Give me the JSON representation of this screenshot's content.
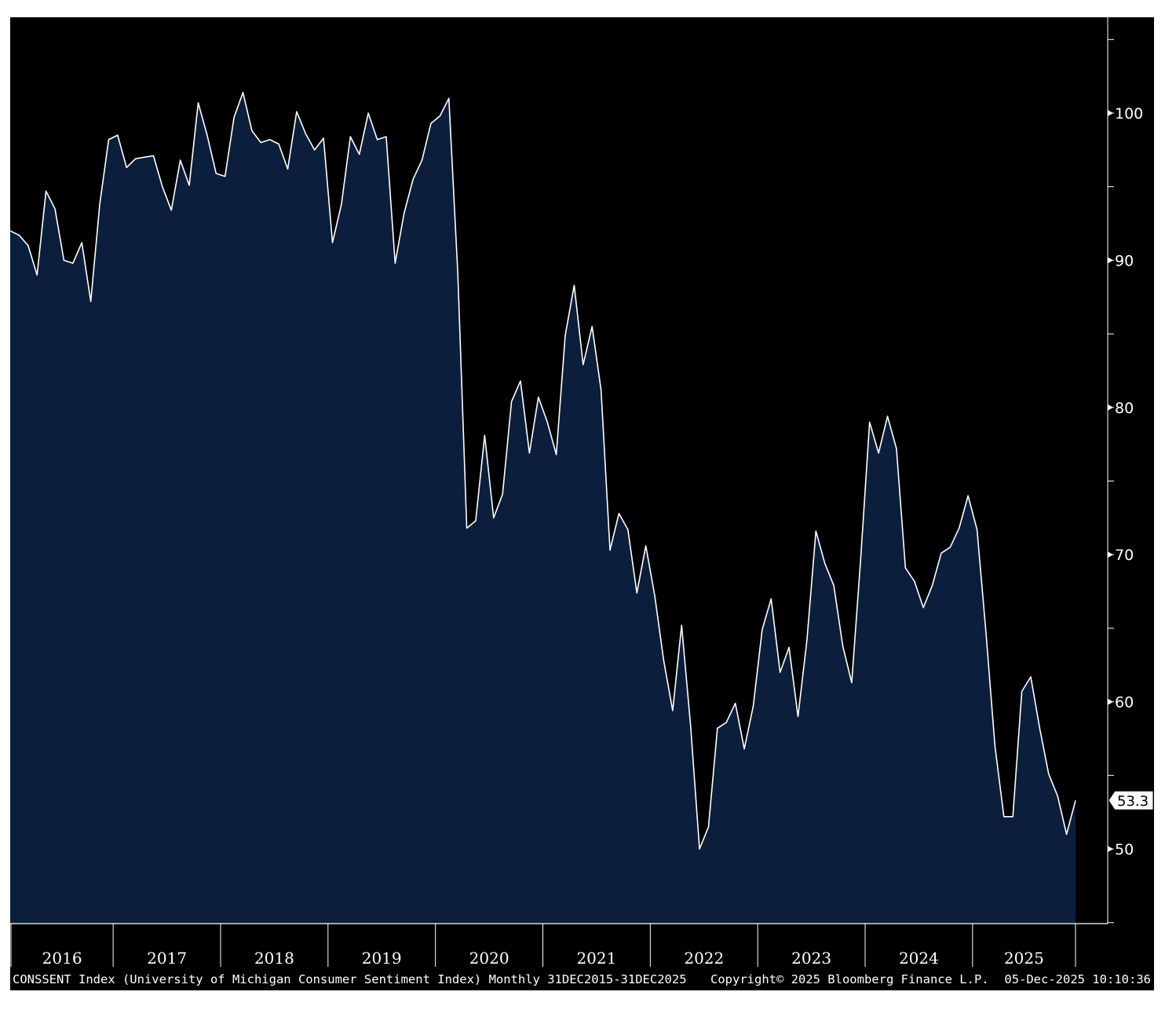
{
  "colors": {
    "background": "#000000",
    "area_fill": "#0b1f3c",
    "line": "#ffffff",
    "axis": "#ffffff",
    "marker_bg": "#ffffff"
  },
  "footer": {
    "description": "CONSSENT Index (University of Michigan Consumer Sentiment Index) Monthly 31DEC2015-31DEC2025",
    "copyright": "Copyright© 2025 Bloomberg Finance L.P.",
    "timestamp": "05-Dec-2025 10:10:36"
  },
  "chart_data": {
    "type": "area",
    "title": "",
    "xlabel": "",
    "ylabel": "",
    "ylim": [
      45,
      107
    ],
    "y_ticks": [
      50,
      60,
      70,
      80,
      90,
      100
    ],
    "y_axis_side": "right",
    "grid": false,
    "legend": "none",
    "last_value_label": "53.3",
    "x_year_labels": [
      "2016",
      "2017",
      "2018",
      "2019",
      "2020",
      "2021",
      "2022",
      "2023",
      "2024",
      "2025"
    ],
    "x_start": "2016-01",
    "x": [
      "2016-01",
      "2016-02",
      "2016-03",
      "2016-04",
      "2016-05",
      "2016-06",
      "2016-07",
      "2016-08",
      "2016-09",
      "2016-10",
      "2016-11",
      "2016-12",
      "2017-01",
      "2017-02",
      "2017-03",
      "2017-04",
      "2017-05",
      "2017-06",
      "2017-07",
      "2017-08",
      "2017-09",
      "2017-10",
      "2017-11",
      "2017-12",
      "2018-01",
      "2018-02",
      "2018-03",
      "2018-04",
      "2018-05",
      "2018-06",
      "2018-07",
      "2018-08",
      "2018-09",
      "2018-10",
      "2018-11",
      "2018-12",
      "2019-01",
      "2019-02",
      "2019-03",
      "2019-04",
      "2019-05",
      "2019-06",
      "2019-07",
      "2019-08",
      "2019-09",
      "2019-10",
      "2019-11",
      "2019-12",
      "2020-01",
      "2020-02",
      "2020-03",
      "2020-04",
      "2020-05",
      "2020-06",
      "2020-07",
      "2020-08",
      "2020-09",
      "2020-10",
      "2020-11",
      "2020-12",
      "2021-01",
      "2021-02",
      "2021-03",
      "2021-04",
      "2021-05",
      "2021-06",
      "2021-07",
      "2021-08",
      "2021-09",
      "2021-10",
      "2021-11",
      "2021-12",
      "2022-01",
      "2022-02",
      "2022-03",
      "2022-04",
      "2022-05",
      "2022-06",
      "2022-07",
      "2022-08",
      "2022-09",
      "2022-10",
      "2022-11",
      "2022-12",
      "2023-01",
      "2023-02",
      "2023-03",
      "2023-04",
      "2023-05",
      "2023-06",
      "2023-07",
      "2023-08",
      "2023-09",
      "2023-10",
      "2023-11",
      "2023-12",
      "2024-01",
      "2024-02",
      "2024-03",
      "2024-04",
      "2024-05",
      "2024-06",
      "2024-07",
      "2024-08",
      "2024-09",
      "2024-10",
      "2024-11",
      "2024-12",
      "2025-01",
      "2025-02",
      "2025-03",
      "2025-04",
      "2025-05",
      "2025-06",
      "2025-07",
      "2025-08",
      "2025-09",
      "2025-10",
      "2025-11",
      "2025-12"
    ],
    "series": [
      {
        "values": [
          92.0,
          91.7,
          91.0,
          89.0,
          94.7,
          93.5,
          90.0,
          89.8,
          91.2,
          87.2,
          93.8,
          98.2,
          98.5,
          96.3,
          96.9,
          97.0,
          97.1,
          95.0,
          93.4,
          96.8,
          95.1,
          100.7,
          98.5,
          95.9,
          95.7,
          99.7,
          101.4,
          98.8,
          98.0,
          98.2,
          97.9,
          96.2,
          100.1,
          98.6,
          97.5,
          98.3,
          91.2,
          93.8,
          98.4,
          97.2,
          100.0,
          98.2,
          98.4,
          89.8,
          93.2,
          95.5,
          96.8,
          99.3,
          99.8,
          101.0,
          89.1,
          71.8,
          72.3,
          78.1,
          72.5,
          74.1,
          80.4,
          81.8,
          76.9,
          80.7,
          79.0,
          76.8,
          84.9,
          88.3,
          82.9,
          85.5,
          81.2,
          70.3,
          72.8,
          71.7,
          67.4,
          70.6,
          67.2,
          62.8,
          59.4,
          65.2,
          58.4,
          50.0,
          51.5,
          58.2,
          58.6,
          59.9,
          56.8,
          59.7,
          64.9,
          67.0,
          62.0,
          63.7,
          59.0,
          64.2,
          71.6,
          69.4,
          67.9,
          63.8,
          61.3,
          69.7,
          79.0,
          76.9,
          79.4,
          77.2,
          69.1,
          68.2,
          66.4,
          67.9,
          70.1,
          70.5,
          71.8,
          74.0,
          71.7,
          64.7,
          57.0,
          52.2,
          52.2,
          60.7,
          61.7,
          58.2,
          55.1,
          53.6,
          51.0,
          53.3
        ]
      }
    ]
  }
}
